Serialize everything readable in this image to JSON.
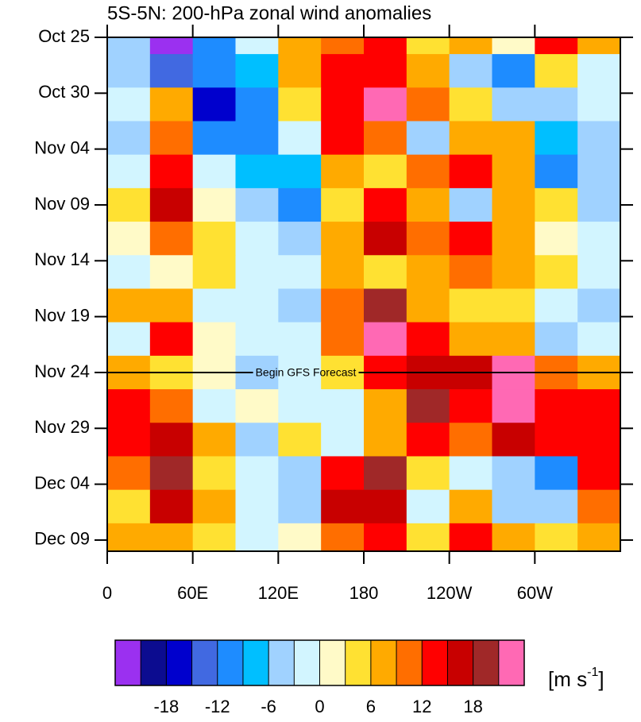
{
  "chart_data": {
    "type": "heatmap",
    "title": "5S-5N: 200-hPa zonal wind anomalies",
    "x": [
      15,
      45,
      75,
      105,
      135,
      165,
      195,
      225,
      255,
      285,
      315,
      345
    ],
    "y": [
      "Oct 25",
      "Oct 28",
      "Oct 31",
      "Nov 03",
      "Nov 06",
      "Nov 09",
      "Nov 12",
      "Nov 15",
      "Nov 18",
      "Nov 21",
      "Nov 24",
      "Nov 27",
      "Nov 30",
      "Dec 03",
      "Dec 06",
      "Dec 09"
    ],
    "z": [
      [
        -5,
        -22,
        -10,
        -3,
        6,
        9,
        12,
        4,
        8,
        2,
        14,
        8
      ],
      [
        -4,
        -15,
        -12,
        -9,
        7,
        13,
        14,
        8,
        -4,
        -10,
        3,
        -2
      ],
      [
        -3,
        7,
        -17,
        -12,
        4,
        14,
        22,
        9,
        4,
        -5,
        -6,
        -3
      ],
      [
        -4,
        9,
        -12,
        -11,
        -2,
        13,
        9,
        -6,
        7,
        8,
        -8,
        -6
      ],
      [
        -2,
        14,
        -3,
        -7,
        -8,
        8,
        5,
        9,
        14,
        7,
        -10,
        -5
      ],
      [
        3,
        16,
        2,
        -5,
        -10,
        4,
        12,
        7,
        -6,
        8,
        3,
        -4
      ],
      [
        2,
        10,
        4,
        -2,
        -4,
        7,
        15,
        9,
        14,
        6,
        1,
        -3
      ],
      [
        -3,
        1,
        3,
        -2,
        -3,
        8,
        5,
        8,
        9,
        6,
        4,
        -2
      ],
      [
        6,
        7,
        -2,
        -1,
        -4,
        10,
        20,
        8,
        4,
        3,
        -3,
        -4
      ],
      [
        -3,
        13,
        2,
        -3,
        -2,
        9,
        22,
        13,
        8,
        7,
        -5,
        -2
      ],
      [
        6,
        3,
        1,
        -4,
        -2,
        3,
        12,
        16,
        15,
        22,
        9,
        7
      ],
      [
        13,
        9,
        -2,
        2,
        -3,
        -2,
        8,
        20,
        14,
        22,
        13,
        12
      ],
      [
        14,
        17,
        7,
        -4,
        3,
        -2,
        7,
        12,
        9,
        16,
        14,
        13
      ],
      [
        9,
        19,
        4,
        -2,
        -5,
        14,
        19,
        3,
        -3,
        -6,
        -12,
        13
      ],
      [
        5,
        16,
        7,
        -3,
        -4,
        16,
        17,
        -2,
        8,
        -4,
        -6,
        9
      ],
      [
        7,
        8,
        3,
        -2,
        2,
        9,
        12,
        4,
        13,
        8,
        3,
        8
      ]
    ],
    "xlim": [
      0,
      360
    ],
    "xticks": [
      0,
      {
        "value": 60,
        "label": "60E"
      },
      {
        "value": 120,
        "label": "120E"
      },
      180,
      {
        "value": 240,
        "label": "120W"
      },
      {
        "value": 300,
        "label": "60W"
      }
    ],
    "ylim": [
      "Oct 25",
      "Dec 10"
    ],
    "yticks": [
      "Oct 25",
      "Oct 30",
      "Nov 04",
      "Nov 09",
      "Nov 14",
      "Nov 19",
      "Nov 24",
      "Nov 29",
      "Dec 04",
      "Dec 09"
    ],
    "annotation": {
      "text": "Begin GFS Forecast",
      "y": "Nov 24"
    },
    "colorbar": {
      "levels": [
        -21,
        -18,
        -15,
        -12,
        -9,
        -6,
        -3,
        0,
        3,
        6,
        9,
        12,
        15,
        18,
        21
      ],
      "colors": [
        "#9b30f0",
        "#0c0c90",
        "#0000cd",
        "#4169e1",
        "#1e8cff",
        "#00bfff",
        "#a0d2ff",
        "#d2f5ff",
        "#fffac8",
        "#ffe132",
        "#ffaa00",
        "#ff6e00",
        "#ff0000",
        "#c80000",
        "#a02828",
        "#ff69b4"
      ],
      "ticks": [
        -18,
        -12,
        -6,
        0,
        6,
        12,
        18
      ],
      "units": {
        "base": "[m s",
        "sup": "-1",
        "close": "]"
      }
    }
  }
}
